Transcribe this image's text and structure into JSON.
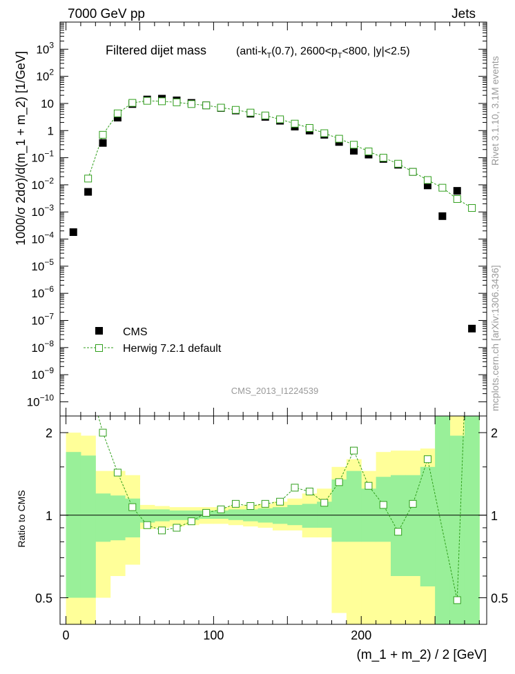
{
  "header": {
    "left": "7000 GeV pp",
    "right": "Jets"
  },
  "side_labels": {
    "rivet": "Rivet 3.1.10,  3.1M events",
    "mcplots": "mcplots.cern.ch [arXiv:1306.3436]"
  },
  "chart_data": [
    {
      "type": "scatter",
      "title": "Filtered dijet mass",
      "subtitle": "(anti-k_T(0.7), 2600<p_T<800, |y|<2.5)",
      "watermark": "CMS_2013_I1224539",
      "ylabel": "1000/σ 2dσ)/d(m_1 + m_2) [1/GeV]",
      "yscale": "log",
      "ylim": [
        3e-11,
        10000.0
      ],
      "xlim": [
        -4,
        285
      ],
      "y_ticks": [
        {
          "v": 1e-10,
          "base": "10",
          "exp": "−10"
        },
        {
          "v": 1e-09,
          "base": "10",
          "exp": "−9"
        },
        {
          "v": 1e-08,
          "base": "10",
          "exp": "−8"
        },
        {
          "v": 1e-07,
          "base": "10",
          "exp": "−7"
        },
        {
          "v": 1e-06,
          "base": "10",
          "exp": "−6"
        },
        {
          "v": 1e-05,
          "base": "10",
          "exp": "−5"
        },
        {
          "v": 0.0001,
          "base": "10",
          "exp": "−4"
        },
        {
          "v": 0.001,
          "base": "10",
          "exp": "−3"
        },
        {
          "v": 0.01,
          "base": "10",
          "exp": "−2"
        },
        {
          "v": 0.1,
          "base": "10",
          "exp": "−1"
        },
        {
          "v": 1,
          "base": "1",
          "exp": ""
        },
        {
          "v": 10,
          "base": "10",
          "exp": ""
        },
        {
          "v": 100,
          "base": "10",
          "exp": "2"
        },
        {
          "v": 1000,
          "base": "10",
          "exp": "3"
        }
      ],
      "legend": {
        "position": "bottom-left",
        "entries": [
          "CMS",
          "Herwig 7.2.1 default"
        ]
      },
      "colors": {
        "data": "#000000",
        "mc": "#2e9e1a",
        "band_stat": "#99f099",
        "band_total": "#ffff99"
      },
      "series": [
        {
          "name": "CMS",
          "marker": "filled-square",
          "x": [
            5,
            15,
            25,
            35,
            45,
            55,
            65,
            75,
            85,
            95,
            105,
            115,
            125,
            135,
            145,
            155,
            165,
            175,
            185,
            195,
            205,
            215,
            225,
            235,
            245,
            255,
            265,
            275
          ],
          "y": [
            0.00018,
            0.0055,
            0.35,
            3.0,
            9.5,
            14,
            15,
            13,
            10.5,
            8.5,
            6.8,
            5.5,
            4.2,
            3.2,
            2.3,
            1.4,
            1.0,
            0.7,
            0.38,
            0.18,
            0.13,
            0.09,
            0.055,
            0.03,
            0.0095,
            0.0007,
            0.006,
            5e-08
          ]
        },
        {
          "name": "Herwig 7.2.1 default",
          "marker": "open-square",
          "line": "dashed",
          "x": [
            15,
            25,
            35,
            45,
            55,
            65,
            75,
            85,
            95,
            105,
            115,
            125,
            135,
            145,
            155,
            165,
            175,
            185,
            195,
            205,
            215,
            225,
            235,
            245,
            255,
            265,
            275
          ],
          "y": [
            0.017,
            0.7,
            4.3,
            10.5,
            12.5,
            12,
            11,
            9.5,
            8.5,
            7.0,
            5.8,
            4.6,
            3.6,
            2.6,
            1.8,
            1.25,
            0.8,
            0.5,
            0.3,
            0.17,
            0.1,
            0.06,
            0.03,
            0.015,
            0.0078,
            0.003,
            0.0014
          ]
        }
      ]
    },
    {
      "type": "scatter",
      "ylabel": "Ratio to CMS",
      "xlabel": "(m_1 + m_2) / 2 [GeV]",
      "yscale": "log",
      "ylim": [
        0.4,
        2.3
      ],
      "xlim": [
        -4,
        285
      ],
      "x_ticks": [
        0,
        100,
        200
      ],
      "y_ticks": [
        {
          "v": 0.5,
          "label": "0.5"
        },
        {
          "v": 1,
          "label": "1"
        },
        {
          "v": 2,
          "label": "2"
        }
      ],
      "bands": {
        "edges": [
          0,
          10,
          20,
          30,
          40,
          50,
          60,
          70,
          80,
          90,
          100,
          110,
          120,
          130,
          140,
          150,
          160,
          170,
          180,
          190,
          200,
          210,
          220,
          230,
          240,
          250,
          260,
          270,
          280
        ],
        "total_lo": [
          0.4,
          0.4,
          0.5,
          0.6,
          0.66,
          0.89,
          0.9,
          0.91,
          0.92,
          0.93,
          0.93,
          0.92,
          0.91,
          0.9,
          0.88,
          0.88,
          0.83,
          0.83,
          0.44,
          0.4,
          0.4,
          0.4,
          0.4,
          0.4,
          0.4,
          0.4,
          0.4,
          0.4
        ],
        "total_hi": [
          2.0,
          1.95,
          1.45,
          1.45,
          1.4,
          1.09,
          1.08,
          1.07,
          1.07,
          1.07,
          1.07,
          1.08,
          1.09,
          1.1,
          1.12,
          1.15,
          1.2,
          1.25,
          1.5,
          1.6,
          1.45,
          1.7,
          1.72,
          1.72,
          1.75,
          2.3,
          2.3,
          2.3
        ],
        "stat_lo": [
          0.5,
          0.5,
          0.8,
          0.81,
          0.83,
          0.94,
          0.95,
          0.96,
          0.96,
          0.97,
          0.97,
          0.96,
          0.95,
          0.94,
          0.93,
          0.92,
          0.9,
          0.9,
          0.8,
          0.8,
          0.8,
          0.8,
          0.6,
          0.6,
          0.55,
          0.4,
          0.4,
          0.4
        ],
        "stat_hi": [
          1.7,
          1.65,
          1.2,
          1.18,
          1.15,
          1.05,
          1.05,
          1.04,
          1.04,
          1.04,
          1.04,
          1.05,
          1.05,
          1.06,
          1.07,
          1.09,
          1.1,
          1.12,
          1.35,
          1.45,
          1.25,
          1.38,
          1.4,
          1.4,
          1.5,
          2.3,
          1.95,
          2.3
        ]
      },
      "series": [
        {
          "name": "Herwig 7.2.1 default / CMS",
          "x": [
            25,
            35,
            45,
            55,
            65,
            75,
            85,
            95,
            105,
            115,
            125,
            135,
            145,
            155,
            165,
            175,
            185,
            195,
            205,
            215,
            225,
            235,
            245,
            265
          ],
          "y": [
            2.0,
            1.43,
            1.07,
            0.92,
            0.88,
            0.9,
            0.95,
            1.02,
            1.05,
            1.1,
            1.08,
            1.1,
            1.12,
            1.26,
            1.22,
            1.11,
            1.32,
            1.72,
            1.28,
            1.09,
            0.87,
            1.1,
            1.6,
            0.49
          ],
          "extra_path_x": [
            20,
            268,
            270
          ],
          "extra_path_y": [
            2.5,
            0.49,
            2.6
          ]
        }
      ]
    }
  ]
}
